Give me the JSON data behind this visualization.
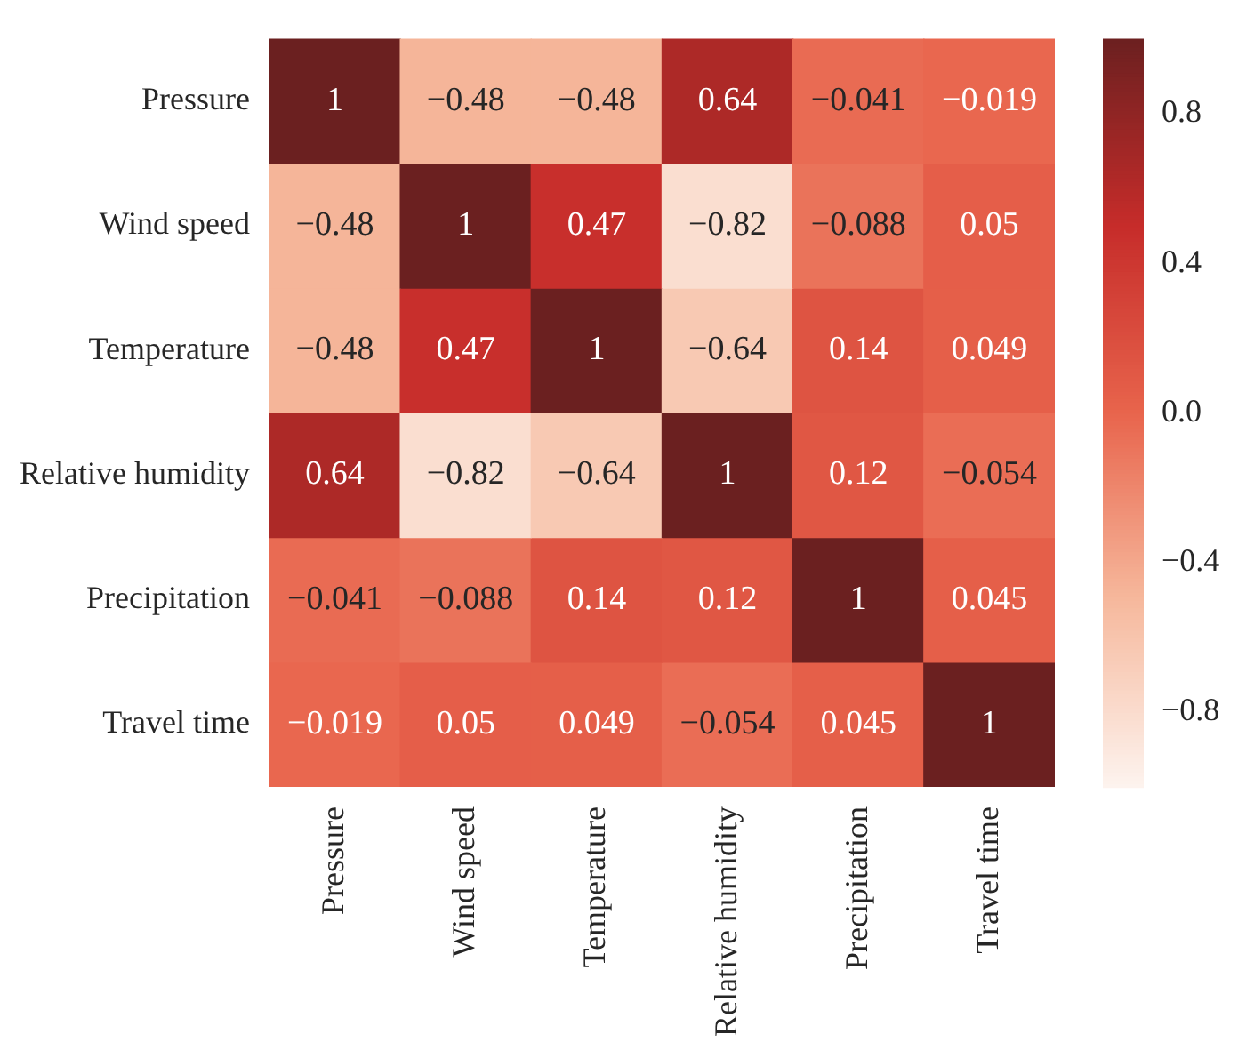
{
  "chart_data": {
    "type": "heatmap",
    "categories": [
      "Pressure",
      "Wind speed",
      "Temperature",
      "Relative humidity",
      "Precipitation",
      "Travel time"
    ],
    "y_categories": [
      "Pressure",
      "Wind speed",
      "Temperature",
      "Relative humidity",
      "Precipitation",
      "Travel time"
    ],
    "cells": [
      [
        1,
        -0.48,
        -0.48,
        0.64,
        -0.041,
        -0.019
      ],
      [
        -0.48,
        1,
        0.47,
        -0.82,
        -0.088,
        0.05
      ],
      [
        -0.48,
        0.47,
        1,
        -0.64,
        0.14,
        0.049
      ],
      [
        0.64,
        -0.82,
        -0.64,
        1,
        0.12,
        -0.054
      ],
      [
        -0.041,
        -0.088,
        0.14,
        0.12,
        1,
        0.045
      ],
      [
        -0.019,
        0.05,
        0.049,
        -0.054,
        0.045,
        1
      ]
    ],
    "cell_labels": [
      [
        "1",
        "−0.48",
        "−0.48",
        "0.64",
        "−0.041",
        "−0.019"
      ],
      [
        "−0.48",
        "1",
        "0.47",
        "−0.82",
        "−0.088",
        "0.05"
      ],
      [
        "−0.48",
        "0.47",
        "1",
        "−0.64",
        "0.14",
        "0.049"
      ],
      [
        "0.64",
        "−0.82",
        "−0.64",
        "1",
        "0.12",
        "−0.054"
      ],
      [
        "−0.041",
        "−0.088",
        "0.14",
        "0.12",
        "1",
        "0.045"
      ],
      [
        "−0.019",
        "0.05",
        "0.049",
        "−0.054",
        "0.045",
        "1"
      ]
    ],
    "clim": [
      -1,
      1
    ],
    "cticks": [
      {
        "value": 0.8,
        "label": "0.8"
      },
      {
        "value": 0.4,
        "label": "0.4"
      },
      {
        "value": 0,
        "label": "0.0"
      },
      {
        "value": -0.4,
        "label": "−0.4"
      },
      {
        "value": -0.8,
        "label": "−0.8"
      }
    ]
  }
}
